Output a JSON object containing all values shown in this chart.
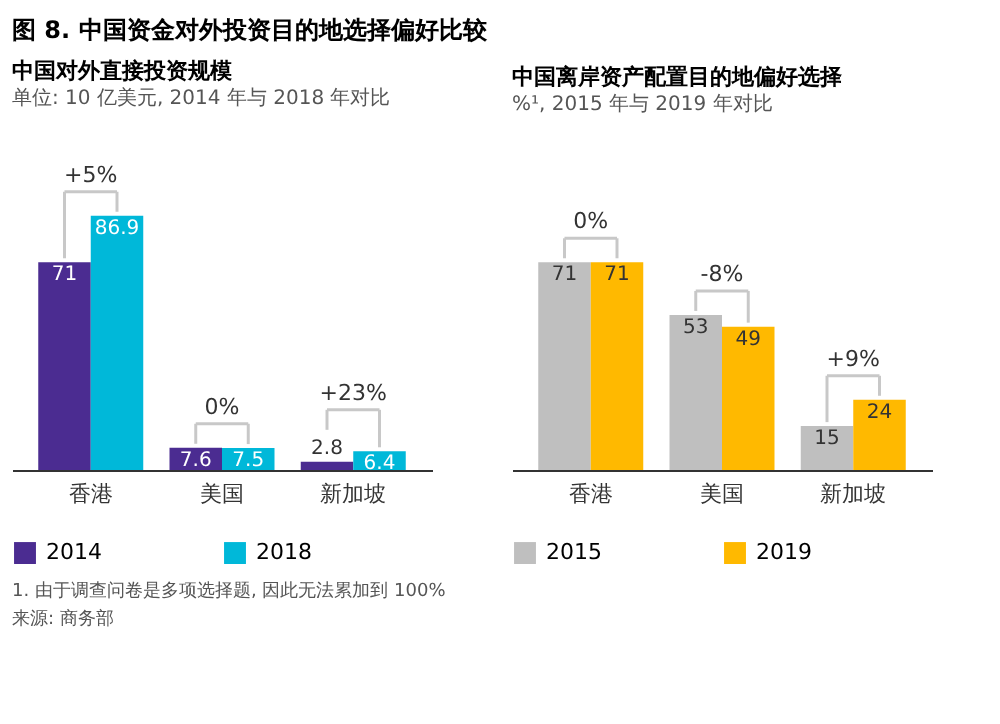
{
  "chart_data": [
    {
      "type": "bar",
      "title": "中国对外直接投资规模",
      "subtitle": "单位: 10 亿美元, 2014 年与 2018 年对比",
      "categories": [
        "香港",
        "美国",
        "新加坡"
      ],
      "series": [
        {
          "name": "2014",
          "color": "#4b2c91",
          "values": [
            71,
            7.6,
            2.8
          ]
        },
        {
          "name": "2018",
          "color": "#00b8d9",
          "values": [
            86.9,
            7.5,
            6.4
          ]
        }
      ],
      "tick_labels": "x",
      "data_labels": true,
      "grid": false,
      "legend": "bottom",
      "annotations": [
        "图 8. 中国资金对外投资目的地选择偏好比较",
        "+5%",
        "0%",
        "+23%",
        "1. 由于调查问卷是多项选择题, 因此无法累加到 100%",
        "来源: 商务部"
      ]
    },
    {
      "type": "bar",
      "title": "中国离岸资产配置目的地偏好选择",
      "subtitle": "%¹, 2015 年与 2019 年对比",
      "categories": [
        "香港",
        "美国",
        "新加坡"
      ],
      "series": [
        {
          "name": "2015",
          "color": "#bfbfbf",
          "values": [
            71,
            53,
            15
          ]
        },
        {
          "name": "2019",
          "color": "#ffb900",
          "values": [
            71,
            49,
            24
          ]
        }
      ],
      "tick_labels": "x",
      "data_labels": true,
      "grid": false,
      "legend": "bottom",
      "annotations": [
        "0%",
        "-8%",
        "+9%"
      ]
    }
  ]
}
